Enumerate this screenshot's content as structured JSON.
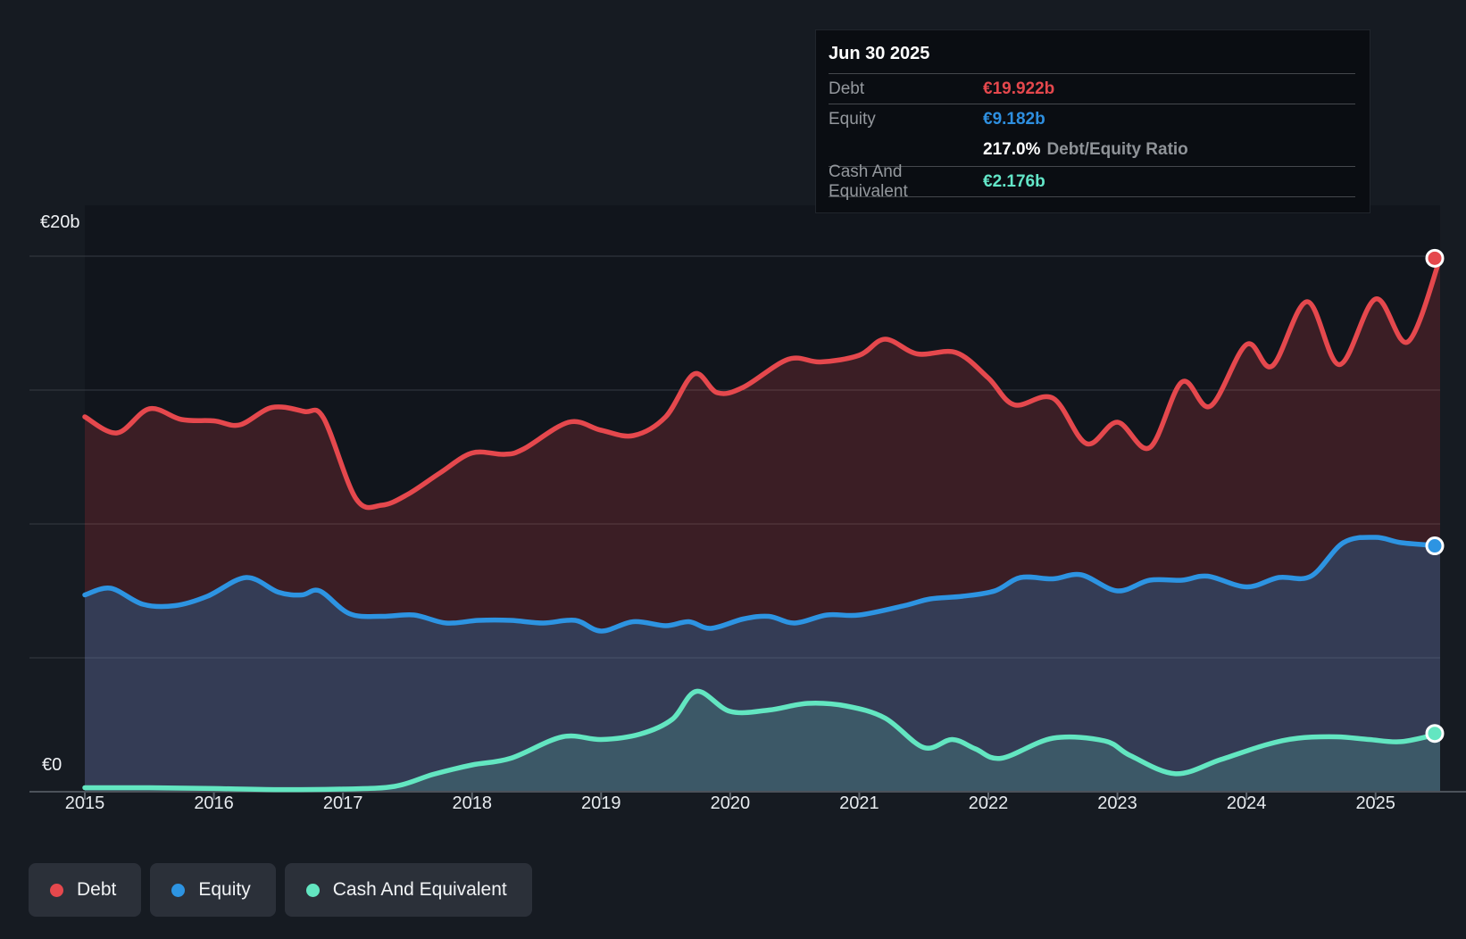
{
  "tooltip": {
    "title": "Jun 30 2025",
    "rows": [
      {
        "label": "Debt",
        "value": "€19.922b",
        "value_color": "#e5484d"
      },
      {
        "label": "Equity",
        "value": "€9.182b",
        "value_color": "#2e8fe0",
        "extra": {
          "value": "217.0%",
          "suffix": "Debt/Equity Ratio"
        }
      },
      {
        "label": "Cash And Equivalent",
        "value": "€2.176b",
        "value_color": "#63e6c8"
      }
    ]
  },
  "legend": {
    "position": "bottom-left",
    "items": [
      {
        "label": "Debt",
        "color": "#e5484d"
      },
      {
        "label": "Equity",
        "color": "#2d94e2"
      },
      {
        "label": "Cash And Equivalent",
        "color": "#63e6c1"
      }
    ]
  },
  "chart_data": {
    "type": "area",
    "currency_unit": "€ billions",
    "x_axis": {
      "tick_values": [
        2015,
        2016,
        2017,
        2018,
        2019,
        2020,
        2021,
        2022,
        2023,
        2024,
        2025
      ],
      "tick_labels": [
        "2015",
        "2016",
        "2017",
        "2018",
        "2019",
        "2020",
        "2021",
        "2022",
        "2023",
        "2024",
        "2025"
      ],
      "range": [
        2015.0,
        2025.5
      ]
    },
    "y_axis": {
      "labels": [
        "€20b",
        "€0"
      ],
      "min": 0,
      "max": 20,
      "gridline_values": [
        20,
        15,
        10,
        5
      ],
      "grid": true
    },
    "series": [
      {
        "name": "Debt",
        "color": "#e5484d",
        "fill": "rgba(229,72,77,0.20)",
        "x": [
          2015.0,
          2015.25,
          2015.5,
          2015.75,
          2016.0,
          2016.2,
          2016.45,
          2016.7,
          2016.85,
          2017.1,
          2017.3,
          2017.5,
          2017.75,
          2018.0,
          2018.25,
          2018.4,
          2018.75,
          2019.0,
          2019.25,
          2019.5,
          2019.72,
          2019.9,
          2020.1,
          2020.45,
          2020.7,
          2021.0,
          2021.2,
          2021.45,
          2021.75,
          2022.0,
          2022.2,
          2022.5,
          2022.76,
          2023.0,
          2023.25,
          2023.5,
          2023.72,
          2024.0,
          2024.2,
          2024.47,
          2024.72,
          2025.0,
          2025.25,
          2025.5
        ],
        "values": [
          14.0,
          13.4,
          14.3,
          13.9,
          13.85,
          13.7,
          14.35,
          14.2,
          13.95,
          10.95,
          10.7,
          11.1,
          11.9,
          12.65,
          12.6,
          12.8,
          13.8,
          13.5,
          13.3,
          14.0,
          15.6,
          14.9,
          15.1,
          16.15,
          16.05,
          16.3,
          16.9,
          16.35,
          16.4,
          15.45,
          14.45,
          14.7,
          13.0,
          13.8,
          12.85,
          15.3,
          14.4,
          16.7,
          15.9,
          18.3,
          15.95,
          18.4,
          16.8,
          19.922
        ],
        "last_value_label": "€19.922b"
      },
      {
        "name": "Equity",
        "color": "#2d94e2",
        "fill": "rgba(36,148,226,0.26)",
        "x": [
          2015.0,
          2015.2,
          2015.45,
          2015.7,
          2015.95,
          2016.25,
          2016.5,
          2016.68,
          2016.82,
          2017.05,
          2017.3,
          2017.55,
          2017.8,
          2018.05,
          2018.3,
          2018.55,
          2018.8,
          2019.0,
          2019.25,
          2019.5,
          2019.68,
          2019.85,
          2020.1,
          2020.3,
          2020.5,
          2020.75,
          2021.0,
          2021.35,
          2021.55,
          2021.8,
          2022.05,
          2022.25,
          2022.5,
          2022.72,
          2023.0,
          2023.25,
          2023.5,
          2023.7,
          2024.0,
          2024.25,
          2024.5,
          2024.75,
          2025.0,
          2025.2,
          2025.5
        ],
        "values": [
          7.35,
          7.6,
          7.0,
          6.95,
          7.3,
          8.0,
          7.45,
          7.35,
          7.5,
          6.65,
          6.55,
          6.6,
          6.3,
          6.4,
          6.4,
          6.3,
          6.4,
          6.0,
          6.35,
          6.2,
          6.35,
          6.1,
          6.45,
          6.55,
          6.3,
          6.6,
          6.6,
          6.95,
          7.2,
          7.3,
          7.5,
          8.0,
          7.95,
          8.1,
          7.5,
          7.9,
          7.9,
          8.05,
          7.65,
          8.0,
          8.05,
          9.3,
          9.5,
          9.3,
          9.182
        ],
        "last_value_label": "€9.182b"
      },
      {
        "name": "Cash And Equivalent",
        "color": "#63e6c1",
        "fill": "rgba(99,230,193,0.17)",
        "x": [
          2015.0,
          2015.5,
          2016.0,
          2016.5,
          2017.0,
          2017.4,
          2017.7,
          2018.0,
          2018.3,
          2018.7,
          2019.0,
          2019.3,
          2019.55,
          2019.74,
          2020.0,
          2020.3,
          2020.6,
          2020.9,
          2021.2,
          2021.5,
          2021.72,
          2021.9,
          2022.1,
          2022.5,
          2022.9,
          2023.1,
          2023.45,
          2023.8,
          2024.15,
          2024.4,
          2024.7,
          2024.95,
          2025.2,
          2025.5
        ],
        "values": [
          0.15,
          0.15,
          0.12,
          0.08,
          0.1,
          0.2,
          0.65,
          1.0,
          1.25,
          2.05,
          1.95,
          2.15,
          2.7,
          3.75,
          3.0,
          3.05,
          3.3,
          3.2,
          2.75,
          1.65,
          1.95,
          1.6,
          1.25,
          2.0,
          1.9,
          1.35,
          0.67,
          1.2,
          1.75,
          2.0,
          2.05,
          1.95,
          1.87,
          2.176
        ],
        "last_value_label": "€2.176b"
      }
    ]
  }
}
